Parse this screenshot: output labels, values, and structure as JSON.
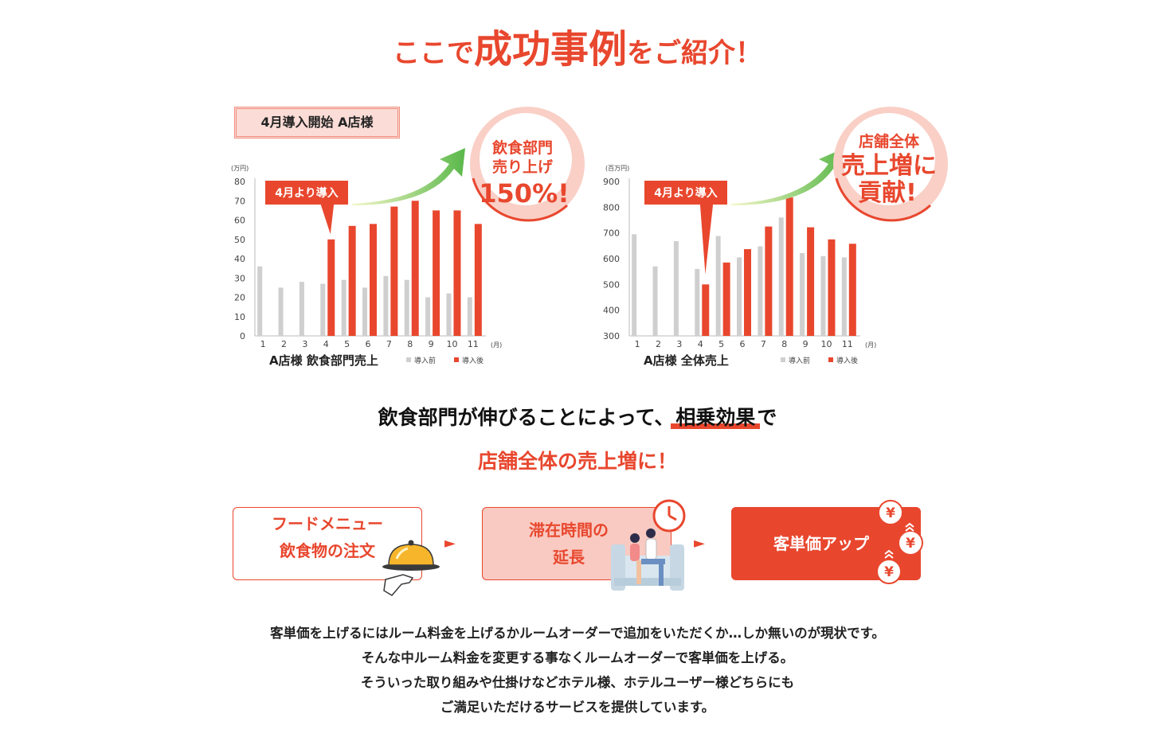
{
  "headline": {
    "part1": "ここで",
    "part2": "成功事例",
    "part3": "をご紹介！"
  },
  "case_label": "4月導入開始 A店様",
  "colors": {
    "accent": "#e8472e",
    "before_gray": "#cfcfcf",
    "after_red": "#e8472e",
    "bubble_fill": "#f9cfc6"
  },
  "chart_data": [
    {
      "type": "bar",
      "title": "A店様 飲食部門売上",
      "unit": "(万円)",
      "x_unit": "(月)",
      "categories": [
        "1",
        "2",
        "3",
        "4",
        "5",
        "6",
        "7",
        "8",
        "9",
        "10",
        "11"
      ],
      "ylim": [
        0,
        80
      ],
      "yticks": [
        0,
        10,
        20,
        30,
        40,
        50,
        60,
        70,
        80
      ],
      "series": [
        {
          "name": "導入前",
          "values": [
            36,
            25,
            28,
            27,
            29,
            25,
            31,
            29,
            20,
            22,
            20
          ]
        },
        {
          "name": "導入後",
          "values": [
            null,
            null,
            null,
            50,
            57,
            58,
            67,
            70,
            65,
            65,
            58
          ]
        }
      ],
      "grid": false,
      "legend": "bottom",
      "callout": "4月より導入",
      "bubble": [
        "飲食部門",
        "売り上げ",
        "150%!"
      ]
    },
    {
      "type": "bar",
      "title": "A店様 全体売上",
      "unit": "(百万円)",
      "x_unit": "(月)",
      "categories": [
        "1",
        "2",
        "3",
        "4",
        "5",
        "6",
        "7",
        "8",
        "9",
        "10",
        "11"
      ],
      "ylim": [
        300,
        900
      ],
      "yticks": [
        300,
        400,
        500,
        600,
        700,
        800,
        900
      ],
      "series": [
        {
          "name": "導入前",
          "values": [
            695,
            570,
            668,
            560,
            688,
            605,
            648,
            760,
            622,
            610,
            605
          ]
        },
        {
          "name": "導入後",
          "values": [
            null,
            null,
            null,
            500,
            585,
            637,
            725,
            838,
            722,
            675,
            658
          ]
        }
      ],
      "grid": false,
      "legend": "bottom",
      "callout": "4月より導入",
      "bubble": [
        "店舗全体",
        "売上増に",
        "貢献!"
      ]
    }
  ],
  "middle": {
    "line1_a": "飲食部門が伸びることによって、",
    "line1_hl": "相乗効果",
    "line1_b": "で",
    "line2": "店舗全体の売上増に！"
  },
  "flow": {
    "box1_line1": "フードメニュー",
    "box1_line2": "飲食物の注文",
    "box2_line1": "滞在時間の",
    "box2_line2": "延長",
    "box3": "客単価アップ",
    "arrow": "►",
    "yen": "¥"
  },
  "body": {
    "line1": "客単価を上げるにはルーム料金を上げるかルームオーダーで追加をいただくか…しか無いのが現状です。",
    "line2": "そんな中ルーム料金を変更する事なくルームオーダーで客単価を上げる。",
    "line3": "そういった取り組みや仕掛けなどホテル様、ホテルユーザー様どちらにも",
    "line4": "ご満足いただけるサービスを提供しています。"
  }
}
